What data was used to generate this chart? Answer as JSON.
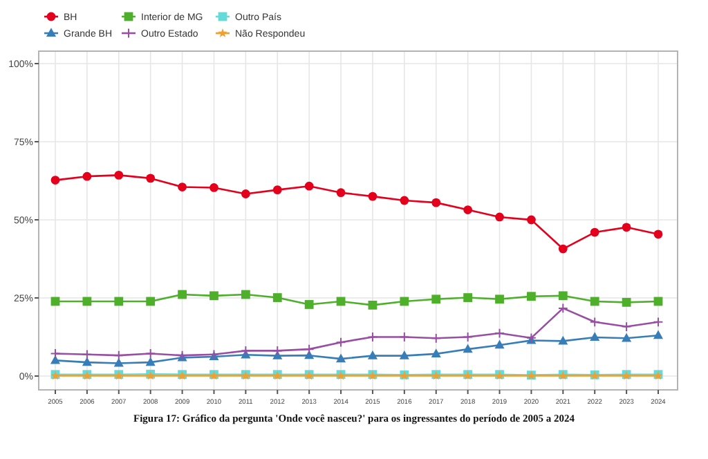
{
  "chart_data": {
    "type": "line",
    "categories": [
      "2005",
      "2006",
      "2007",
      "2008",
      "2009",
      "2010",
      "2011",
      "2012",
      "2013",
      "2014",
      "2015",
      "2016",
      "2017",
      "2018",
      "2019",
      "2020",
      "2021",
      "2022",
      "2023",
      "2024"
    ],
    "series": [
      {
        "name": "BH",
        "color": "#e4001c",
        "marker": "circle",
        "values": [
          62.7,
          63.9,
          64.3,
          63.3,
          60.5,
          60.3,
          58.3,
          59.6,
          60.8,
          58.7,
          57.5,
          56.2,
          55.5,
          53.2,
          50.9,
          50.0,
          40.7,
          46.0,
          47.6,
          45.4
        ]
      },
      {
        "name": "Grande BH",
        "color": "#377eb8",
        "marker": "triangle",
        "values": [
          5.0,
          4.4,
          4.1,
          4.4,
          5.9,
          6.2,
          6.8,
          6.5,
          6.6,
          5.5,
          6.5,
          6.5,
          7.1,
          8.6,
          9.9,
          11.4,
          11.2,
          12.4,
          12.1,
          13.0
        ]
      },
      {
        "name": "Interior de MG",
        "color": "#4daf2a",
        "marker": "square",
        "values": [
          23.9,
          23.9,
          23.9,
          23.9,
          26.1,
          25.7,
          26.1,
          25.1,
          22.9,
          23.9,
          22.7,
          23.9,
          24.6,
          25.1,
          24.6,
          25.5,
          25.7,
          23.9,
          23.6,
          23.9
        ]
      },
      {
        "name": "Outro Estado",
        "color": "#984ea3",
        "marker": "cross",
        "values": [
          7.2,
          6.9,
          6.6,
          7.2,
          6.6,
          6.9,
          8.1,
          8.1,
          8.6,
          10.8,
          12.5,
          12.5,
          12.1,
          12.5,
          13.7,
          12.2,
          21.7,
          17.3,
          15.8,
          17.3
        ]
      },
      {
        "name": "Outro País",
        "color": "#66d9d9",
        "marker": "square",
        "values": [
          0.5,
          0.5,
          0.5,
          0.6,
          0.5,
          0.5,
          0.5,
          0.5,
          0.5,
          0.5,
          0.5,
          0.4,
          0.5,
          0.5,
          0.5,
          0.3,
          0.5,
          0.4,
          0.5,
          0.5
        ]
      },
      {
        "name": "Não Respondeu",
        "color": "#f0a030",
        "marker": "star",
        "values": [
          0.1,
          0.1,
          0.1,
          0.1,
          0.1,
          0.1,
          0.1,
          0.1,
          0.1,
          0.1,
          0.1,
          0.1,
          0.1,
          0.1,
          0.1,
          0.1,
          0.1,
          0.1,
          0.1,
          0.1
        ]
      }
    ],
    "ylim": [
      0,
      100
    ],
    "yticks": [
      {
        "value": 0,
        "label": "0%"
      },
      {
        "value": 25,
        "label": "25%"
      },
      {
        "value": 50,
        "label": "50%"
      },
      {
        "value": 75,
        "label": "75%"
      },
      {
        "value": 100,
        "label": "100%"
      }
    ],
    "grid": true,
    "legend": "top left",
    "annotations": [
      "Figura 17: Gráfico da pergunta 'Onde você nasceu?' para os ingressantes do período de 2005 a 2024"
    ]
  }
}
